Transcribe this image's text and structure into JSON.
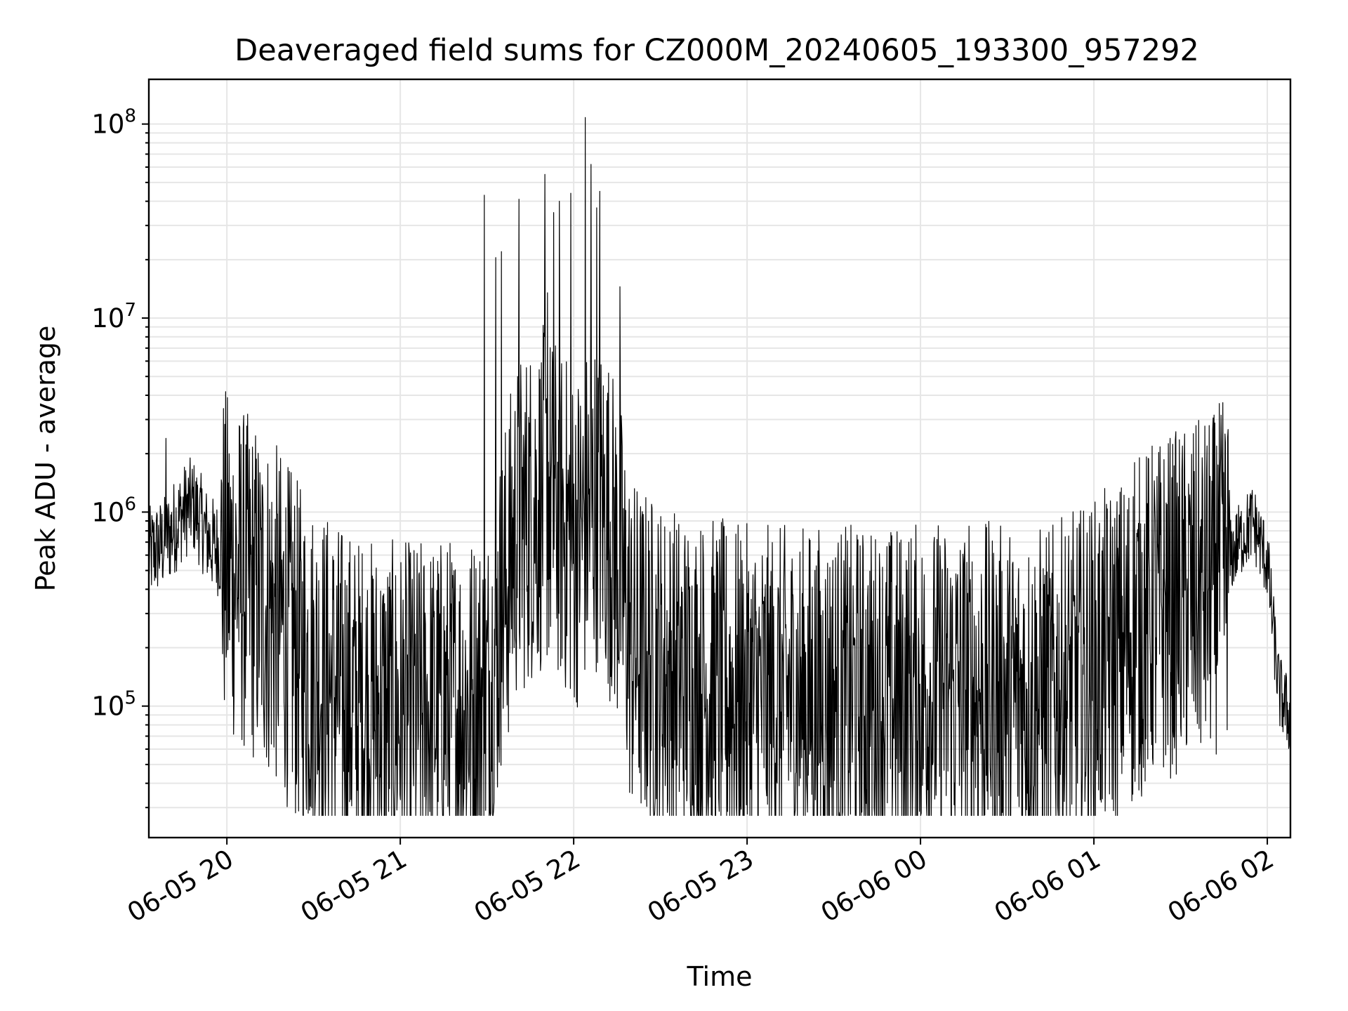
{
  "chart_data": {
    "type": "line",
    "title": "Deaveraged field sums for CZ000M_20240605_193300_957292",
    "xlabel": "Time",
    "ylabel": "Peak ADU - average",
    "yscale": "log",
    "xlim": [
      "2024-06-05 19:33",
      "2024-06-06 02:08"
    ],
    "ylim": [
      21000,
      170000000
    ],
    "grid": true,
    "line_color": "#000000",
    "x_ticks": [
      {
        "t": "2024-06-05 20:00",
        "label": "06-05 20"
      },
      {
        "t": "2024-06-05 21:00",
        "label": "06-05 21"
      },
      {
        "t": "2024-06-05 22:00",
        "label": "06-05 22"
      },
      {
        "t": "2024-06-05 23:00",
        "label": "06-05 23"
      },
      {
        "t": "2024-06-06 00:00",
        "label": "06-06 00"
      },
      {
        "t": "2024-06-06 01:00",
        "label": "06-06 01"
      },
      {
        "t": "2024-06-06 02:00",
        "label": "06-06 02"
      }
    ],
    "y_ticks": [
      {
        "value": 100000,
        "base": "10",
        "exp": "5"
      },
      {
        "value": 1000000,
        "base": "10",
        "exp": "6"
      },
      {
        "value": 10000000,
        "base": "10",
        "exp": "7"
      },
      {
        "value": 100000000,
        "base": "10",
        "exp": "8"
      }
    ],
    "series": [
      {
        "x": [
          "2024-06-05 19:33",
          "2024-06-05 19:36",
          "2024-06-05 19:39",
          "2024-06-05 19:42",
          "2024-06-05 19:45",
          "2024-06-05 19:48",
          "2024-06-05 19:51",
          "2024-06-05 19:54",
          "2024-06-05 19:57",
          "2024-06-05 20:00",
          "2024-06-05 20:05",
          "2024-06-05 20:10",
          "2024-06-05 20:15",
          "2024-06-05 20:20",
          "2024-06-05 20:25",
          "2024-06-05 20:30",
          "2024-06-05 20:35",
          "2024-06-05 20:40",
          "2024-06-05 20:45",
          "2024-06-05 20:50",
          "2024-06-05 21:00",
          "2024-06-05 21:10",
          "2024-06-05 21:20",
          "2024-06-05 21:30",
          "2024-06-05 21:35",
          "2024-06-05 21:40",
          "2024-06-05 21:45",
          "2024-06-05 21:50",
          "2024-06-05 21:55",
          "2024-06-05 22:00",
          "2024-06-05 22:04",
          "2024-06-05 22:08",
          "2024-06-05 22:12",
          "2024-06-05 22:16",
          "2024-06-05 22:20",
          "2024-06-05 22:30",
          "2024-06-05 22:40",
          "2024-06-05 22:50",
          "2024-06-05 23:00",
          "2024-06-05 23:15",
          "2024-06-05 23:30",
          "2024-06-05 23:45",
          "2024-06-06 00:00",
          "2024-06-06 00:15",
          "2024-06-06 00:30",
          "2024-06-06 00:45",
          "2024-06-06 01:00",
          "2024-06-06 01:10",
          "2024-06-06 01:20",
          "2024-06-06 01:30",
          "2024-06-06 01:40",
          "2024-06-06 01:45",
          "2024-06-06 01:50",
          "2024-06-06 01:55",
          "2024-06-06 02:00",
          "2024-06-06 02:04",
          "2024-06-06 02:08"
        ],
        "y": [
          600000,
          650000,
          700000,
          850000,
          1000000,
          1100000,
          900000,
          700000,
          650000,
          550000,
          450000,
          380000,
          320000,
          250000,
          180000,
          150000,
          130000,
          110000,
          100000,
          95000,
          90000,
          95000,
          100000,
          110000,
          300000,
          800000,
          1000000,
          1200000,
          1000000,
          700000,
          900000,
          1200000,
          900000,
          500000,
          200000,
          150000,
          130000,
          120000,
          110000,
          110000,
          110000,
          110000,
          115000,
          120000,
          110000,
          110000,
          150000,
          200000,
          300000,
          350000,
          400000,
          500000,
          700000,
          900000,
          550000,
          120000,
          85000
        ],
        "spikes": [
          [
            "2024-06-05 19:39",
            2400000
          ],
          [
            "2024-06-05 21:29",
            43000000
          ],
          [
            "2024-06-05 21:33",
            20500000
          ],
          [
            "2024-06-05 21:35",
            22000000
          ],
          [
            "2024-06-05 21:41",
            41000000
          ],
          [
            "2024-06-05 21:50",
            55000000
          ],
          [
            "2024-06-05 21:51",
            13500000
          ],
          [
            "2024-06-05 21:53",
            35000000
          ],
          [
            "2024-06-05 21:55",
            40000000
          ],
          [
            "2024-06-05 21:59",
            44000000
          ],
          [
            "2024-06-05 22:04",
            108000000
          ],
          [
            "2024-06-05 22:06",
            62000000
          ],
          [
            "2024-06-05 22:08",
            37000000
          ],
          [
            "2024-06-05 22:09",
            45000000
          ],
          [
            "2024-06-05 22:16",
            14500000
          ],
          [
            "2024-06-06 01:14",
            1800000
          ],
          [
            "2024-06-06 01:43",
            1750000
          ]
        ]
      }
    ]
  }
}
